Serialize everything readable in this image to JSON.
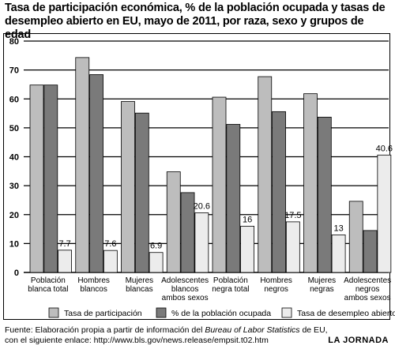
{
  "title_line1": "Tasa de participación económica, % de la población ocupada y tasas de",
  "title_line2": "desempleo abierto en EU, mayo de 2011, por raza, sexo y grupos de edad",
  "footer": {
    "line1_prefix": "Fuente: Elaboración propia a partir de información del ",
    "line1_italic": "Bureau of Labor Statistics",
    "line1_suffix": " de EU,",
    "line2": "con el siguiente enlace: http://www.bls.gov/news.release/empsit.t02.htm"
  },
  "brand": "LA JORNADA",
  "colors": {
    "participacion": "#bdbdbd",
    "ocupada": "#7a7a7a",
    "desempleo": "#ececec",
    "grid": "#000000"
  },
  "chart_data": {
    "type": "bar",
    "categories": [
      [
        "Población",
        "blanca total"
      ],
      [
        "Hombres",
        "blancos"
      ],
      [
        "Mujeres",
        "blancas"
      ],
      [
        "Adolescentes",
        "blancos",
        "ambos sexos"
      ],
      [
        "Población",
        "negra total"
      ],
      [
        "Hombres",
        "negros"
      ],
      [
        "Mujeres",
        "negras"
      ],
      [
        "Adolescentes",
        "negros",
        "ambos sexos"
      ]
    ],
    "series": [
      {
        "name": "Tasa de participación",
        "values": [
          64.8,
          74.3,
          59.1,
          34.8,
          60.6,
          67.7,
          61.8,
          24.6
        ],
        "labeled": false
      },
      {
        "name": "% de la población ocupada",
        "values": [
          64.8,
          68.4,
          55.1,
          27.6,
          51.2,
          55.6,
          53.7,
          14.5
        ],
        "labeled": false
      },
      {
        "name": "Tasa de desempleo abierto",
        "values": [
          7.7,
          7.6,
          6.9,
          20.6,
          16,
          17.5,
          13,
          40.6
        ],
        "labeled": true
      }
    ],
    "data_labels": [
      "7.7",
      "7.6",
      "6.9",
      "20.6",
      "16",
      "17.5",
      "13",
      "40.6"
    ],
    "yticks": [
      "0",
      "10",
      "20",
      "30",
      "40",
      "50",
      "60",
      "70",
      "80"
    ],
    "ylim": [
      0,
      80
    ],
    "grid": true,
    "legend_position": "bottom"
  }
}
